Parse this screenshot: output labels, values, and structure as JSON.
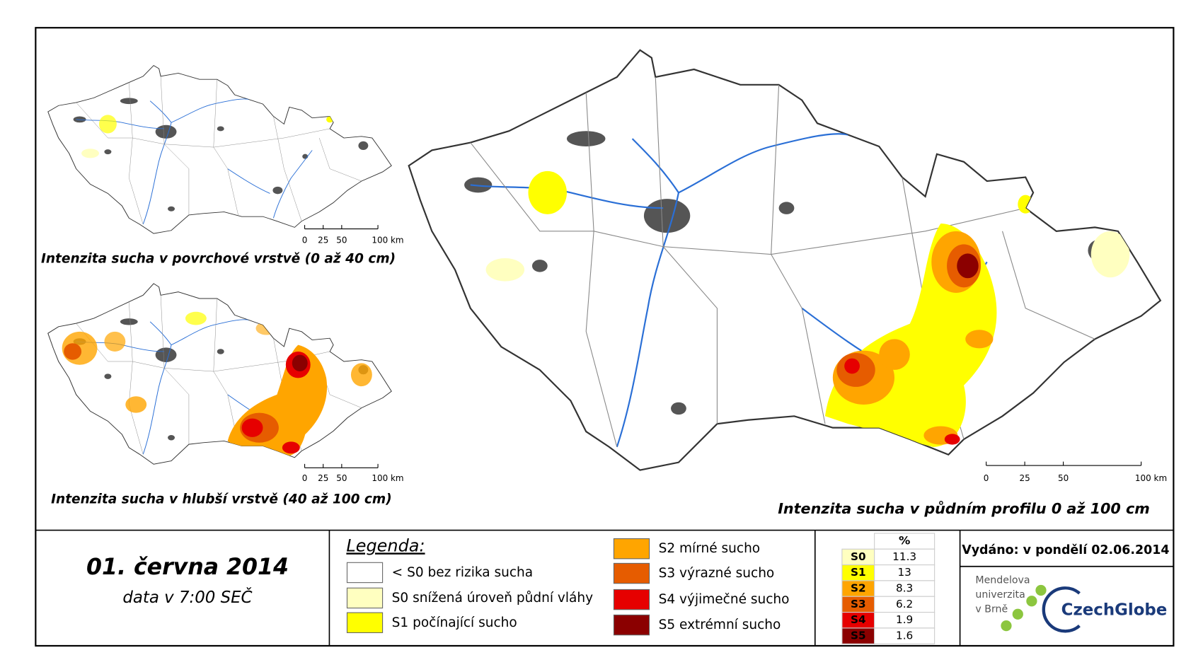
{
  "maps": [
    {
      "title": "Intenzita sucha v povrchové vrstvě (0 až 40 cm)",
      "scale": [
        "0",
        "25",
        "50",
        "100 km"
      ]
    },
    {
      "title": "Intenzita sucha v hlubší vrstvě (40 až 100 cm)",
      "scale": [
        "0",
        "25",
        "50",
        "100 km"
      ]
    },
    {
      "title": "Intenzita sucha v půdním profilu 0 až 100 cm",
      "scale": [
        "0",
        "25",
        "50",
        "100 km"
      ]
    }
  ],
  "date": "01. června 2014",
  "time": "data v 7:00 SEČ",
  "legend": {
    "title": "Legenda:",
    "items": [
      {
        "label": "< S0 bez rizika sucha",
        "color": "#ffffff"
      },
      {
        "label": "S0 snížená úroveň půdní vláhy",
        "color": "#ffffc0"
      },
      {
        "label": "S1 počínající sucho",
        "color": "#ffff00"
      },
      {
        "label": "S2 mírné sucho",
        "color": "#ffa500"
      },
      {
        "label": "S3 výrazné sucho",
        "color": "#e65c00"
      },
      {
        "label": "S4 výjimečné sucho",
        "color": "#e60000"
      },
      {
        "label": "S5 extrémní sucho",
        "color": "#8b0000"
      }
    ]
  },
  "stats": {
    "header": "%",
    "rows": [
      {
        "class": "S0",
        "value": 11.3,
        "color": "#ffffc0"
      },
      {
        "class": "S1",
        "value": 13,
        "color": "#ffff00"
      },
      {
        "class": "S2",
        "value": 8.3,
        "color": "#ffa500"
      },
      {
        "class": "S3",
        "value": 6.2,
        "color": "#e65c00"
      },
      {
        "class": "S4",
        "value": 1.9,
        "color": "#e60000"
      },
      {
        "class": "S5",
        "value": 1.6,
        "color": "#8b0000"
      }
    ]
  },
  "issued": "Vydáno: v pondělí 02.06.2014",
  "logos": {
    "mendel": [
      "Mendelova",
      "univerzita",
      "v Brně"
    ],
    "czechglobe": "CzechGlobe"
  }
}
